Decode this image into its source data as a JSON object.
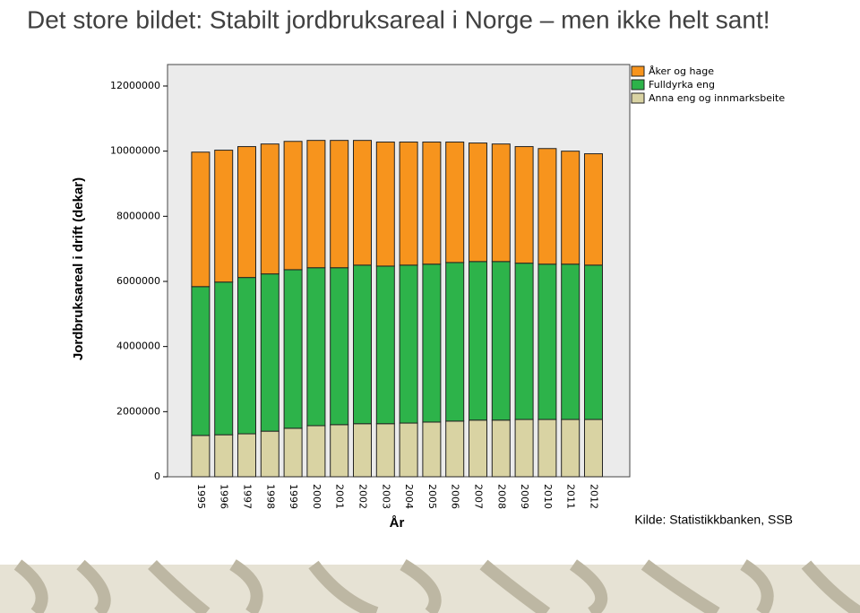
{
  "chart_data": {
    "type": "stacked-bar",
    "title": "Det store bildet: Stabilt jordbruksareal i Norge – men ikke helt sant!",
    "y_label": "Jordbruksareal i drift (dekar)",
    "x_label": "År",
    "source": "Kilde: Statistikkbanken, SSB",
    "categories": [
      "1995",
      "1996",
      "1997",
      "1998",
      "1999",
      "2000",
      "2001",
      "2002",
      "2003",
      "2004",
      "2005",
      "2006",
      "2007",
      "2008",
      "2009",
      "2010",
      "2011",
      "2012"
    ],
    "series": [
      {
        "name": "Åker og hage",
        "color": "#f7941d",
        "values": [
          4130000,
          4050000,
          4020000,
          3990000,
          3940000,
          3910000,
          3910000,
          3830000,
          3810000,
          3780000,
          3750000,
          3700000,
          3640000,
          3610000,
          3580000,
          3550000,
          3470000,
          3420000
        ]
      },
      {
        "name": "Fulldyrka eng",
        "color": "#2db34a",
        "values": [
          4570000,
          4690000,
          4800000,
          4830000,
          4870000,
          4850000,
          4820000,
          4870000,
          4840000,
          4850000,
          4850000,
          4870000,
          4870000,
          4870000,
          4800000,
          4770000,
          4770000,
          4740000
        ]
      },
      {
        "name": "Anna eng og innmarksbeite",
        "color": "#d9d3a3",
        "values": [
          1270000,
          1290000,
          1320000,
          1400000,
          1490000,
          1570000,
          1600000,
          1630000,
          1630000,
          1650000,
          1680000,
          1710000,
          1740000,
          1740000,
          1760000,
          1760000,
          1760000,
          1760000
        ]
      }
    ],
    "ylim": [
      0,
      12660000
    ],
    "yticks": [
      0,
      2000000,
      4000000,
      6000000,
      8000000,
      10000000,
      12000000
    ],
    "legend": "top-right"
  }
}
